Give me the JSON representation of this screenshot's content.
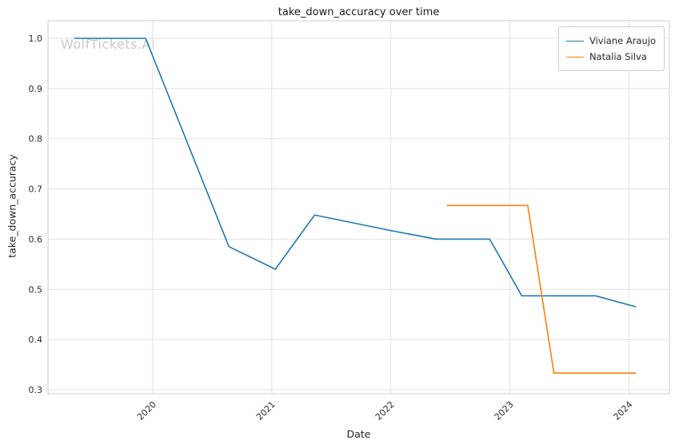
{
  "watermark": "WolfTickets.AI",
  "chart_data": {
    "type": "line",
    "title": "take_down_accuracy over time",
    "xlabel": "Date",
    "ylabel": "take_down_accuracy",
    "grid": true,
    "legend_position": "upper right",
    "xlim": [
      2019.12,
      2024.34
    ],
    "ylim": [
      0.292,
      1.035
    ],
    "x_ticks": [
      2020,
      2021,
      2022,
      2023,
      2024
    ],
    "y_ticks": [
      0.3,
      0.4,
      0.5,
      0.6,
      0.7,
      0.8,
      0.9,
      1.0
    ],
    "colors": {
      "grid": "#e2e2e2",
      "spine": "#cccccc",
      "tick_text": "#2b2b2b",
      "title_text": "#1a1a1a",
      "watermark": "#c9c9c9",
      "background": "#ffffff"
    },
    "series": [
      {
        "name": "Viviane Araujo",
        "color": "#1f77b4",
        "x": [
          2019.34,
          2019.94,
          2020.64,
          2021.03,
          2021.36,
          2022.0,
          2022.38,
          2022.83,
          2023.1,
          2023.72,
          2024.06
        ],
        "y": [
          1.0,
          1.0,
          0.585,
          0.54,
          0.648,
          0.617,
          0.6,
          0.6,
          0.487,
          0.487,
          0.465
        ]
      },
      {
        "name": "Natalia Silva",
        "color": "#ff7f0e",
        "x": [
          2022.47,
          2023.15,
          2023.37,
          2024.06
        ],
        "y": [
          0.667,
          0.667,
          0.333,
          0.333
        ]
      }
    ]
  }
}
